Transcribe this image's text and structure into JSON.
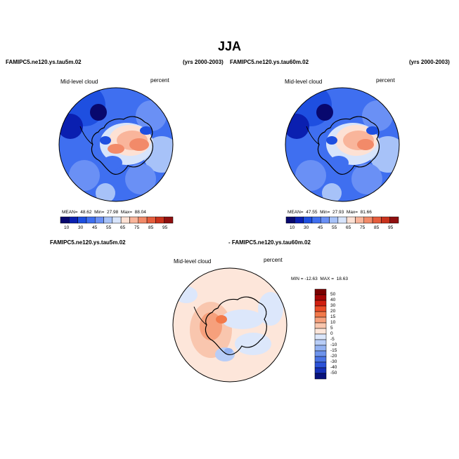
{
  "title": "JJA",
  "panels": [
    {
      "case": "FAMIPC5.ne120.ys.tau5m.02",
      "years": "(yrs 2000-2003)",
      "variable": "Mid-level cloud",
      "units": "percent",
      "stats": {
        "mean_label": "MEAN=",
        "mean": "48.62",
        "min_label": "Min=",
        "min": "27.98",
        "max_label": "Max=",
        "max": "88.04"
      },
      "colorbar_labels": [
        "10",
        "30",
        "45",
        "55",
        "65",
        "75",
        "85",
        "95"
      ]
    },
    {
      "case": "FAMIPC5.ne120.ys.tau60m.02",
      "years": "(yrs 2000-2003)",
      "variable": "Mid-level cloud",
      "units": "percent",
      "stats": {
        "mean_label": "MEAN=",
        "mean": "47.55",
        "min_label": "Min=",
        "min": "27.93",
        "max_label": "Max=",
        "max": "81.66"
      },
      "colorbar_labels": [
        "10",
        "30",
        "45",
        "55",
        "65",
        "75",
        "85",
        "95"
      ]
    }
  ],
  "difference": {
    "case_a": "FAMIPC5.ne120.ys.tau5m.02",
    "case_b": "- FAMIPC5.ne120.ys.tau60m.02",
    "variable": "Mid-level cloud",
    "units": "percent",
    "minmax": "MIN = -12.63  MAX =  18.63",
    "colorbar_labels": [
      "50",
      "40",
      "30",
      "20",
      "15",
      "10",
      "5",
      "0",
      "-5",
      "-10",
      "-15",
      "-20",
      "-30",
      "-40",
      "-50"
    ]
  },
  "colors": {
    "field_scale": [
      "#08086e",
      "#0a1fb0",
      "#1e4fe0",
      "#3f6ff0",
      "#6a90f5",
      "#a7c2f8",
      "#d7e4fb",
      "#fde1d4",
      "#f9b59b",
      "#f28a69",
      "#e55d3c",
      "#c9321d",
      "#8f0f0f"
    ],
    "diff_scale": [
      "#7a0000",
      "#a50505",
      "#d01f10",
      "#ec4d28",
      "#f2794a",
      "#f6a07c",
      "#f9c6ae",
      "#fde6da",
      "#dce7fb",
      "#b8cdf7",
      "#93b2f2",
      "#6d93ec",
      "#4a74e5",
      "#2b52d8",
      "#1530b8",
      "#08127c"
    ]
  }
}
